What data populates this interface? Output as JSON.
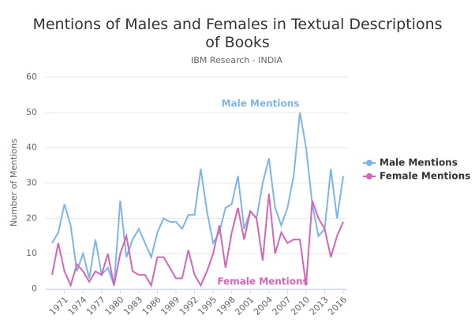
{
  "chart_data": {
    "type": "line",
    "title": "Mentions of Males and Females in Textual Descriptions of Books",
    "subtitle": "IBM Research - INDIA",
    "y_label": "Number of Mentions",
    "x": [
      1969,
      1970,
      1971,
      1972,
      1973,
      1974,
      1975,
      1976,
      1977,
      1978,
      1979,
      1980,
      1981,
      1982,
      1983,
      1984,
      1985,
      1986,
      1987,
      1988,
      1989,
      1990,
      1991,
      1992,
      1993,
      1994,
      1995,
      1996,
      1997,
      1998,
      1999,
      2000,
      2001,
      2002,
      2003,
      2004,
      2005,
      2006,
      2007,
      2008,
      2009,
      2010,
      2011,
      2012,
      2013,
      2014,
      2015,
      2016
    ],
    "series": [
      {
        "name": "Male Mentions",
        "color": "#7cb5ec",
        "values": [
          13,
          16,
          24,
          18,
          5,
          10,
          3,
          14,
          4,
          6,
          1,
          25,
          9,
          14,
          17,
          13,
          9,
          16,
          20,
          19,
          19,
          17,
          21,
          21,
          34,
          22,
          13,
          16,
          23,
          24,
          32,
          17,
          22,
          20,
          30,
          37,
          23,
          18,
          23,
          32,
          50,
          40,
          24,
          15,
          17,
          34,
          20,
          32
        ]
      },
      {
        "name": "Female Mentions",
        "color": "#d466b5",
        "values": [
          4,
          13,
          5,
          1,
          7,
          5,
          2,
          5,
          4,
          10,
          1,
          10,
          15,
          5,
          4,
          4,
          1,
          9,
          9,
          6,
          3,
          3,
          11,
          4,
          1,
          5,
          10,
          18,
          6,
          16,
          23,
          14,
          22,
          20,
          8,
          27,
          10,
          16,
          13,
          14,
          14,
          1,
          25,
          20,
          17,
          9,
          15,
          19
        ]
      }
    ],
    "xlim": [
      1969,
      2016
    ],
    "xticks": [
      1971,
      1974,
      1977,
      1980,
      1983,
      1986,
      1989,
      1992,
      1995,
      1998,
      2001,
      2004,
      2007,
      2010,
      2013,
      2016
    ],
    "ylim": [
      0,
      60
    ],
    "yticks": [
      0,
      10,
      20,
      30,
      40,
      50,
      60
    ],
    "grid": true,
    "legend": "right"
  }
}
